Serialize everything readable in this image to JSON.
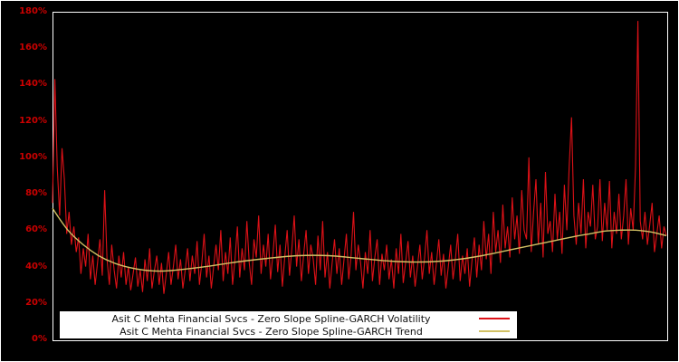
{
  "chart_data": {
    "type": "line",
    "title": "",
    "xlabel": "",
    "ylabel": "",
    "ylim": [
      0,
      180
    ],
    "grid": false,
    "background_color": "#000000",
    "frame_color": "#ffffff",
    "tick_color": "#cc0000",
    "legend_position": "bottom-center",
    "yticks": [
      {
        "value": 0,
        "label": "0%"
      },
      {
        "value": 20,
        "label": "20%"
      },
      {
        "value": 40,
        "label": "40%"
      },
      {
        "value": 60,
        "label": "60%"
      },
      {
        "value": 80,
        "label": "80%"
      },
      {
        "value": 100,
        "label": "100%"
      },
      {
        "value": 120,
        "label": "120%"
      },
      {
        "value": 140,
        "label": "140%"
      },
      {
        "value": 160,
        "label": "160%"
      },
      {
        "value": 180,
        "label": "180%"
      }
    ],
    "series": [
      {
        "name": "Asit C Mehta Financial Svcs - Zero Slope Spline-GARCH Volatility",
        "color": "#dd1117",
        "style": "noisy-line",
        "values": [
          75,
          143,
          95,
          68,
          105,
          88,
          58,
          70,
          52,
          62,
          48,
          56,
          36,
          50,
          40,
          58,
          33,
          46,
          30,
          42,
          55,
          35,
          82,
          44,
          30,
          52,
          38,
          28,
          46,
          34,
          48,
          30,
          40,
          27,
          36,
          45,
          29,
          38,
          26,
          44,
          32,
          50,
          28,
          38,
          46,
          30,
          42,
          25,
          36,
          48,
          30,
          40,
          52,
          33,
          44,
          28,
          38,
          50,
          32,
          46,
          36,
          54,
          30,
          42,
          58,
          34,
          46,
          28,
          40,
          52,
          38,
          60,
          32,
          48,
          36,
          56,
          30,
          44,
          62,
          34,
          50,
          38,
          65,
          42,
          30,
          55,
          45,
          68,
          36,
          52,
          40,
          58,
          33,
          47,
          63,
          37,
          52,
          29,
          45,
          60,
          35,
          50,
          68,
          40,
          55,
          32,
          47,
          60,
          36,
          52,
          44,
          30,
          57,
          38,
          65,
          34,
          48,
          28,
          42,
          55,
          36,
          50,
          30,
          44,
          58,
          33,
          46,
          70,
          38,
          52,
          42,
          28,
          48,
          36,
          60,
          32,
          45,
          55,
          30,
          47,
          38,
          52,
          33,
          44,
          28,
          50,
          36,
          58,
          31,
          42,
          54,
          34,
          46,
          29,
          40,
          52,
          33,
          45,
          60,
          36,
          48,
          30,
          42,
          55,
          35,
          47,
          28,
          40,
          52,
          33,
          44,
          58,
          32,
          46,
          36,
          50,
          29,
          43,
          56,
          34,
          52,
          38,
          65,
          44,
          58,
          36,
          70,
          48,
          60,
          42,
          74,
          50,
          62,
          45,
          78,
          55,
          68,
          47,
          82,
          60,
          55,
          100,
          48,
          70,
          88,
          52,
          75,
          45,
          92,
          58,
          65,
          48,
          80,
          55,
          70,
          47,
          85,
          60,
          95,
          122,
          68,
          52,
          75,
          58,
          88,
          50,
          70,
          62,
          85,
          55,
          62,
          88,
          54,
          75,
          60,
          87,
          50,
          70,
          58,
          80,
          55,
          68,
          88,
          52,
          72,
          60,
          95,
          175,
          65,
          55,
          70,
          52,
          63,
          75,
          48,
          58,
          68,
          50,
          62,
          57
        ]
      },
      {
        "name": "Asit C Mehta Financial Svcs - Zero Slope Spline-GARCH Trend",
        "color": "#d2c164",
        "style": "smooth-line",
        "x": [
          0,
          0.025,
          0.05,
          0.075,
          0.1,
          0.125,
          0.15,
          0.175,
          0.2,
          0.25,
          0.3,
          0.35,
          0.4,
          0.45,
          0.5,
          0.55,
          0.6,
          0.65,
          0.7,
          0.75,
          0.8,
          0.85,
          0.875,
          0.9,
          0.925,
          0.95,
          0.975,
          1
        ],
        "values": [
          72,
          60,
          52,
          46,
          42,
          39.5,
          38,
          37.5,
          38,
          40,
          42.5,
          44.5,
          46,
          46,
          44.5,
          43,
          42.5,
          43.5,
          46,
          49.5,
          53,
          56.5,
          58,
          59.5,
          60,
          60,
          59,
          57
        ]
      }
    ]
  }
}
